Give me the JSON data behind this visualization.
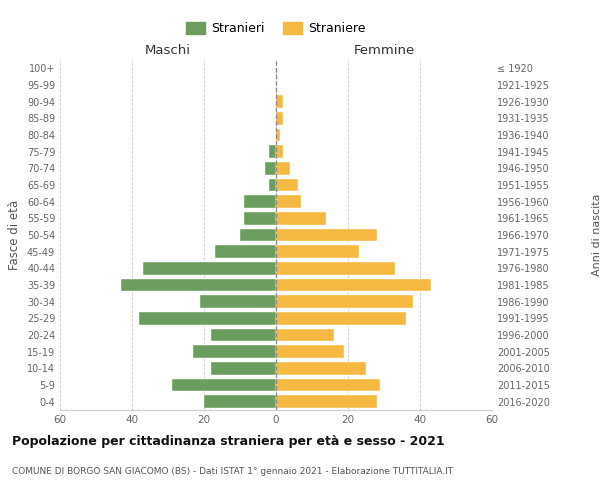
{
  "age_groups": [
    "0-4",
    "5-9",
    "10-14",
    "15-19",
    "20-24",
    "25-29",
    "30-34",
    "35-39",
    "40-44",
    "45-49",
    "50-54",
    "55-59",
    "60-64",
    "65-69",
    "70-74",
    "75-79",
    "80-84",
    "85-89",
    "90-94",
    "95-99",
    "100+"
  ],
  "birth_years": [
    "2016-2020",
    "2011-2015",
    "2006-2010",
    "2001-2005",
    "1996-2000",
    "1991-1995",
    "1986-1990",
    "1981-1985",
    "1976-1980",
    "1971-1975",
    "1966-1970",
    "1961-1965",
    "1956-1960",
    "1951-1955",
    "1946-1950",
    "1941-1945",
    "1936-1940",
    "1931-1935",
    "1926-1930",
    "1921-1925",
    "≤ 1920"
  ],
  "males": [
    20,
    29,
    18,
    23,
    18,
    38,
    21,
    43,
    37,
    17,
    10,
    9,
    9,
    2,
    3,
    2,
    0,
    0,
    0,
    0,
    0
  ],
  "females": [
    28,
    29,
    25,
    19,
    16,
    36,
    38,
    43,
    33,
    23,
    28,
    14,
    7,
    6,
    4,
    2,
    1,
    2,
    2,
    0,
    0
  ],
  "male_color": "#6b9e5e",
  "female_color": "#f5b942",
  "bg_color": "#ffffff",
  "grid_color": "#cccccc",
  "title": "Popolazione per cittadinanza straniera per età e sesso - 2021",
  "subtitle": "COMUNE DI BORGO SAN GIACOMO (BS) - Dati ISTAT 1° gennaio 2021 - Elaborazione TUTTITALIA.IT",
  "ylabel_left": "Fasce di età",
  "ylabel_right": "Anni di nascita",
  "xlabel_left": "Maschi",
  "xlabel_right": "Femmine",
  "xlim": 60,
  "legend_stranieri": "Stranieri",
  "legend_straniere": "Straniere"
}
